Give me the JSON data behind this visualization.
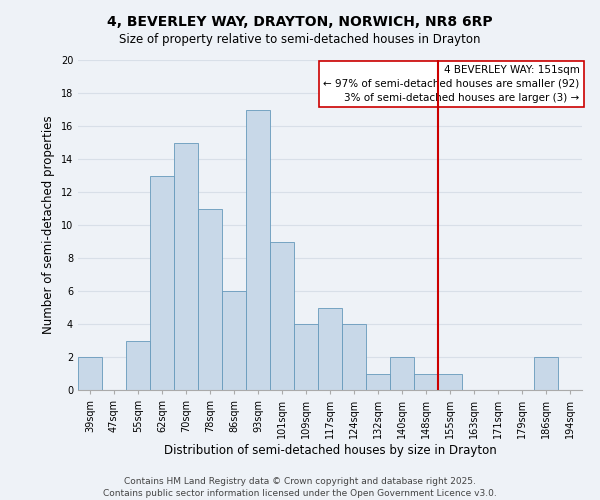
{
  "title": "4, BEVERLEY WAY, DRAYTON, NORWICH, NR8 6RP",
  "subtitle": "Size of property relative to semi-detached houses in Drayton",
  "xlabel": "Distribution of semi-detached houses by size in Drayton",
  "ylabel": "Number of semi-detached properties",
  "bar_labels": [
    "39sqm",
    "47sqm",
    "55sqm",
    "62sqm",
    "70sqm",
    "78sqm",
    "86sqm",
    "93sqm",
    "101sqm",
    "109sqm",
    "117sqm",
    "124sqm",
    "132sqm",
    "140sqm",
    "148sqm",
    "155sqm",
    "163sqm",
    "171sqm",
    "179sqm",
    "186sqm",
    "194sqm"
  ],
  "bar_heights": [
    2,
    0,
    3,
    13,
    15,
    11,
    6,
    17,
    9,
    4,
    5,
    4,
    1,
    2,
    1,
    1,
    0,
    0,
    0,
    2,
    0
  ],
  "bar_color": "#c8d8e8",
  "bar_edge_color": "#6699bb",
  "ylim": [
    0,
    20
  ],
  "yticks": [
    0,
    2,
    4,
    6,
    8,
    10,
    12,
    14,
    16,
    18,
    20
  ],
  "vline_x": 14.5,
  "vline_color": "#cc0000",
  "annotation_title": "4 BEVERLEY WAY: 151sqm",
  "annotation_line1": "← 97% of semi-detached houses are smaller (92)",
  "annotation_line2": "3% of semi-detached houses are larger (3) →",
  "annotation_box_color": "#ffffff",
  "annotation_box_edge": "#cc0000",
  "footer1": "Contains HM Land Registry data © Crown copyright and database right 2025.",
  "footer2": "Contains public sector information licensed under the Open Government Licence v3.0.",
  "background_color": "#eef2f7",
  "grid_color": "#d8dfe8",
  "title_fontsize": 10,
  "subtitle_fontsize": 8.5,
  "axis_label_fontsize": 8.5,
  "tick_fontsize": 7,
  "footer_fontsize": 6.5,
  "annotation_fontsize": 7.5
}
